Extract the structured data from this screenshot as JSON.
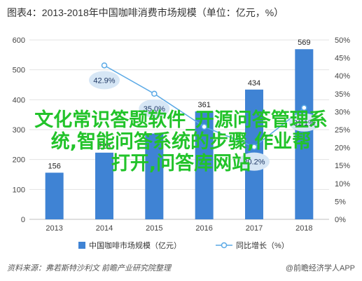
{
  "chart_data": {
    "type": "bar",
    "title": "图表4：2013-2018年中国咖啡消费市场规模（单位：亿元，%）",
    "categories": [
      "2013",
      "2014",
      "2015",
      "2016",
      "2017",
      "2018"
    ],
    "series": [
      {
        "name": "中国咖啡市场规模（亿元）",
        "type": "bar",
        "axis": "left",
        "values": [
          156,
          223,
          287,
          361,
          434,
          569
        ],
        "labels": [
          "156",
          "223",
          "",
          "361",
          "434",
          "569"
        ],
        "color": "#3f83d4"
      },
      {
        "name": "同比增长（%）",
        "type": "line",
        "axis": "right",
        "values": [
          null,
          42.9,
          35.0,
          25.8,
          20.2,
          31.1
        ],
        "labels": [
          "",
          "42.9%",
          "35.0%",
          "",
          "20.2%",
          "31.1%"
        ],
        "color": "#5aa9e6"
      }
    ],
    "ylim_left": [
      0,
      600
    ],
    "yticks_left": [
      "0",
      "100",
      "200",
      "300",
      "400",
      "500",
      "600"
    ],
    "ylim_right": [
      0,
      50
    ],
    "yticks_right": [
      "0%",
      "5%",
      "10%",
      "15%",
      "20%",
      "25%",
      "30%",
      "35%",
      "40%",
      "45%",
      "50%"
    ],
    "grid": true,
    "legend": "bottom"
  },
  "overlay_text": [
    "文化常识答题软件_开源问答管理系",
    "统,智能问答系统的步骤,作业帮",
    "打开,问答库网站"
  ],
  "footer": {
    "source": "资料来源：弗若斯特沙利文 前瞻产业研究院整理",
    "brand": "@前瞻经济学人APP"
  }
}
